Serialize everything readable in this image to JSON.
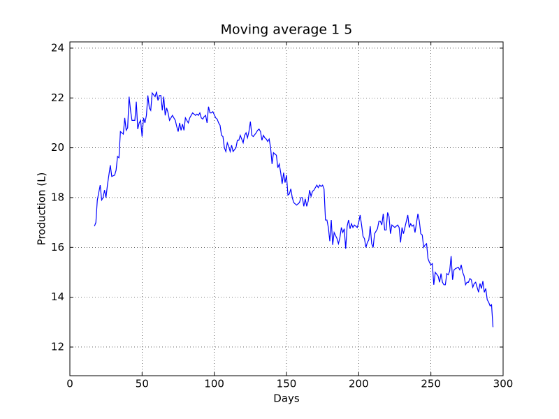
{
  "chart_data": {
    "type": "line",
    "title": "Moving average 1 5",
    "xlabel": "Days",
    "ylabel": "Production (L)",
    "xlim": [
      0,
      300
    ],
    "xticks": [
      0,
      50,
      100,
      150,
      200,
      250,
      300
    ],
    "ylim": [
      10.85,
      24.25
    ],
    "yticks": [
      12,
      14,
      16,
      18,
      20,
      22,
      24
    ],
    "grid": true,
    "x": [
      17,
      18,
      19,
      20,
      21,
      22,
      23,
      24,
      25,
      26,
      27,
      28,
      29,
      31,
      32,
      33,
      34,
      35,
      36,
      37,
      38,
      39,
      40,
      41,
      42,
      43,
      45,
      46,
      47,
      48,
      49,
      50,
      51,
      52,
      53,
      54,
      55,
      56,
      57,
      59,
      60,
      61,
      62,
      63,
      64,
      65,
      66,
      67,
      68,
      69,
      70,
      71,
      73,
      74,
      75,
      76,
      77,
      78,
      79,
      80,
      81,
      82,
      83,
      84,
      85,
      87,
      88,
      89,
      90,
      91,
      92,
      93,
      94,
      95,
      96,
      97,
      98,
      99,
      101,
      102,
      103,
      104,
      105,
      106,
      107,
      108,
      109,
      110,
      111,
      112,
      113,
      115,
      116,
      117,
      118,
      119,
      120,
      121,
      122,
      123,
      124,
      125,
      126,
      127,
      129,
      130,
      131,
      132,
      133,
      134,
      135,
      136,
      137,
      138,
      139,
      140,
      141,
      143,
      144,
      145,
      146,
      147,
      148,
      149,
      150,
      151,
      152,
      153,
      154,
      155,
      157,
      158,
      159,
      160,
      161,
      162,
      163,
      164,
      165,
      166,
      167,
      168,
      169,
      171,
      172,
      173,
      174,
      175,
      176,
      177,
      178,
      179,
      180,
      181,
      182,
      183,
      185,
      186,
      187,
      188,
      189,
      190,
      191,
      192,
      193,
      194,
      195,
      196,
      197,
      199,
      200,
      201,
      202,
      203,
      204,
      205,
      206,
      207,
      208,
      209,
      210,
      211,
      213,
      214,
      215,
      216,
      217,
      218,
      219,
      220,
      221,
      222,
      223,
      224,
      225,
      227,
      228,
      229,
      230,
      231,
      232,
      233,
      234,
      235,
      236,
      237,
      238,
      239,
      241,
      242,
      243,
      244,
      245,
      246,
      247,
      248,
      249,
      250,
      251,
      252,
      253,
      255,
      256,
      257,
      258,
      259,
      260,
      261,
      262,
      263,
      264,
      265,
      266,
      267,
      269,
      270,
      271,
      272,
      273,
      274,
      275,
      276,
      277,
      278,
      279,
      280,
      281,
      283,
      284,
      285,
      286,
      287,
      288,
      289,
      290,
      291,
      292,
      293
    ],
    "series": [
      {
        "name": "Production",
        "color": "#0000ff",
        "values": [
          16.85,
          17.0,
          17.9,
          18.2,
          18.5,
          17.9,
          18.0,
          18.3,
          18.0,
          18.5,
          18.9,
          19.3,
          18.85,
          18.9,
          19.1,
          19.65,
          19.6,
          20.65,
          20.6,
          20.55,
          21.2,
          20.7,
          20.8,
          22.05,
          21.5,
          21.1,
          21.1,
          21.85,
          20.75,
          21.0,
          21.1,
          20.45,
          21.2,
          21.0,
          21.3,
          22.1,
          21.6,
          21.5,
          22.2,
          22.05,
          22.25,
          21.9,
          22.1,
          22.1,
          21.5,
          22.05,
          21.3,
          21.6,
          21.4,
          21.1,
          21.2,
          21.3,
          21.1,
          20.85,
          20.65,
          21.0,
          20.7,
          20.95,
          20.7,
          21.2,
          21.1,
          21.0,
          21.2,
          21.3,
          21.4,
          21.3,
          21.35,
          21.3,
          21.4,
          21.2,
          21.15,
          21.25,
          21.3,
          21.0,
          21.65,
          21.4,
          21.4,
          21.45,
          21.2,
          21.15,
          21.0,
          20.9,
          20.5,
          20.45,
          20.0,
          19.85,
          20.2,
          20.05,
          19.85,
          20.1,
          19.85,
          20.0,
          20.3,
          20.3,
          20.5,
          20.35,
          20.2,
          20.5,
          20.6,
          20.4,
          20.65,
          21.05,
          20.5,
          20.45,
          20.6,
          20.7,
          20.75,
          20.65,
          20.3,
          20.5,
          20.4,
          20.35,
          20.25,
          20.35,
          20.0,
          19.35,
          19.8,
          19.7,
          19.2,
          19.35,
          19.0,
          18.55,
          19.0,
          18.6,
          18.9,
          18.1,
          18.15,
          18.35,
          18.0,
          17.8,
          17.7,
          17.75,
          17.8,
          18.0,
          18.0,
          17.65,
          17.95,
          17.65,
          17.85,
          18.3,
          18.05,
          18.25,
          18.3,
          18.5,
          18.4,
          18.5,
          18.45,
          18.5,
          18.35,
          17.1,
          17.1,
          16.8,
          16.25,
          17.1,
          16.1,
          16.6,
          16.35,
          16.15,
          16.4,
          16.8,
          16.6,
          16.75,
          15.95,
          16.85,
          17.1,
          16.75,
          16.95,
          16.8,
          16.9,
          16.8,
          17.0,
          17.3,
          16.9,
          16.45,
          16.35,
          16.0,
          16.2,
          16.3,
          16.85,
          16.15,
          16.0,
          16.55,
          16.75,
          17.05,
          17.05,
          16.9,
          17.35,
          16.7,
          16.7,
          17.4,
          17.25,
          16.55,
          16.9,
          16.85,
          16.8,
          16.9,
          16.8,
          16.2,
          16.8,
          16.55,
          16.8,
          17.05,
          17.3,
          16.8,
          16.95,
          16.85,
          16.9,
          16.6,
          17.35,
          17.05,
          16.55,
          16.5,
          16.0,
          16.1,
          16.15,
          15.55,
          15.4,
          15.3,
          15.35,
          14.5,
          15.0,
          14.85,
          14.6,
          14.95,
          14.6,
          14.5,
          14.5,
          14.95,
          14.9,
          15.05,
          15.65,
          14.7,
          15.1,
          15.15,
          15.2,
          15.1,
          15.3,
          15.0,
          14.85,
          14.5,
          14.6,
          14.6,
          14.75,
          14.7,
          14.4,
          14.55,
          14.6,
          14.2,
          14.55,
          14.35,
          14.65,
          14.2,
          14.35,
          13.9,
          13.8,
          13.65,
          13.7,
          12.8
        ]
      }
    ]
  }
}
